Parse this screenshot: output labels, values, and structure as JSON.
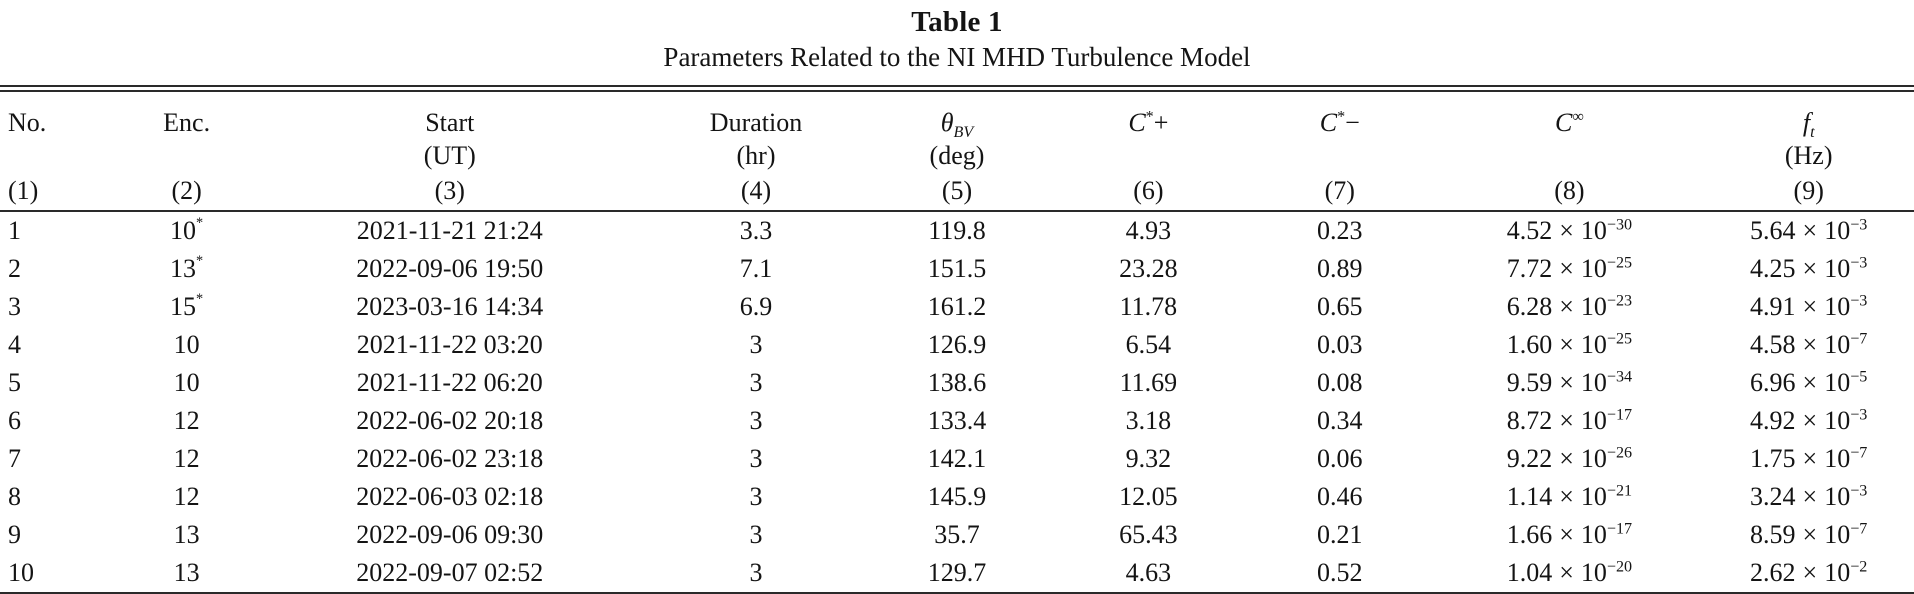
{
  "title": "Table 1",
  "subtitle": "Parameters Related to the NI MHD Turbulence Model",
  "fmt": {
    "times": "×",
    "base": "10"
  },
  "columns": [
    {
      "label": "No.",
      "unit": "",
      "num": "(1)"
    },
    {
      "label": "Enc.",
      "unit": "",
      "num": "(2)"
    },
    {
      "label": "Start",
      "unit": "(UT)",
      "num": "(3)"
    },
    {
      "label": "Duration",
      "unit": "(hr)",
      "num": "(4)"
    },
    {
      "base": "θ",
      "sub": "BV",
      "unit": "(deg)",
      "num": "(5)"
    },
    {
      "base": "C",
      "sup": "*",
      "after": "+",
      "unit": "",
      "num": "(6)"
    },
    {
      "base": "C",
      "sup": "*",
      "after": "−",
      "unit": "",
      "num": "(7)"
    },
    {
      "base": "C",
      "sup": "∞",
      "after": "",
      "unit": "",
      "num": "(8)"
    },
    {
      "base": "f",
      "sub": "t",
      "unit": "(Hz)",
      "num": "(9)"
    }
  ],
  "rows": [
    {
      "no": "1",
      "enc": "10",
      "star": "*",
      "start": "2021-11-21 21:24",
      "dur": "3.3",
      "theta": "119.8",
      "cplus": "4.93",
      "cminus": "0.23",
      "cinf": {
        "m": "4.52",
        "e": "−30"
      },
      "ft": {
        "m": "5.64",
        "e": "−3"
      }
    },
    {
      "no": "2",
      "enc": "13",
      "star": "*",
      "start": "2022-09-06 19:50",
      "dur": "7.1",
      "theta": "151.5",
      "cplus": "23.28",
      "cminus": "0.89",
      "cinf": {
        "m": "7.72",
        "e": "−25"
      },
      "ft": {
        "m": "4.25",
        "e": "−3"
      }
    },
    {
      "no": "3",
      "enc": "15",
      "star": "*",
      "start": "2023-03-16 14:34",
      "dur": "6.9",
      "theta": "161.2",
      "cplus": "11.78",
      "cminus": "0.65",
      "cinf": {
        "m": "6.28",
        "e": "−23"
      },
      "ft": {
        "m": "4.91",
        "e": "−3"
      }
    },
    {
      "no": "4",
      "enc": "10",
      "star": "",
      "start": "2021-11-22 03:20",
      "dur": "3",
      "theta": "126.9",
      "cplus": "6.54",
      "cminus": "0.03",
      "cinf": {
        "m": "1.60",
        "e": "−25"
      },
      "ft": {
        "m": "4.58",
        "e": "−7"
      }
    },
    {
      "no": "5",
      "enc": "10",
      "star": "",
      "start": "2021-11-22 06:20",
      "dur": "3",
      "theta": "138.6",
      "cplus": "11.69",
      "cminus": "0.08",
      "cinf": {
        "m": "9.59",
        "e": "−34"
      },
      "ft": {
        "m": "6.96",
        "e": "−5"
      }
    },
    {
      "no": "6",
      "enc": "12",
      "star": "",
      "start": "2022-06-02 20:18",
      "dur": "3",
      "theta": "133.4",
      "cplus": "3.18",
      "cminus": "0.34",
      "cinf": {
        "m": "8.72",
        "e": "−17"
      },
      "ft": {
        "m": "4.92",
        "e": "−3"
      }
    },
    {
      "no": "7",
      "enc": "12",
      "star": "",
      "start": "2022-06-02 23:18",
      "dur": "3",
      "theta": "142.1",
      "cplus": "9.32",
      "cminus": "0.06",
      "cinf": {
        "m": "9.22",
        "e": "−26"
      },
      "ft": {
        "m": "1.75",
        "e": "−7"
      }
    },
    {
      "no": "8",
      "enc": "12",
      "star": "",
      "start": "2022-06-03 02:18",
      "dur": "3",
      "theta": "145.9",
      "cplus": "12.05",
      "cminus": "0.46",
      "cinf": {
        "m": "1.14",
        "e": "−21"
      },
      "ft": {
        "m": "3.24",
        "e": "−3"
      }
    },
    {
      "no": "9",
      "enc": "13",
      "star": "",
      "start": "2022-09-06 09:30",
      "dur": "3",
      "theta": "35.7",
      "cplus": "65.43",
      "cminus": "0.21",
      "cinf": {
        "m": "1.66",
        "e": "−17"
      },
      "ft": {
        "m": "8.59",
        "e": "−7"
      }
    },
    {
      "no": "10",
      "enc": "13",
      "star": "",
      "start": "2022-09-07 02:52",
      "dur": "3",
      "theta": "129.7",
      "cplus": "4.63",
      "cminus": "0.52",
      "cinf": {
        "m": "1.04",
        "e": "−20"
      },
      "ft": {
        "m": "2.62",
        "e": "−2"
      }
    }
  ]
}
